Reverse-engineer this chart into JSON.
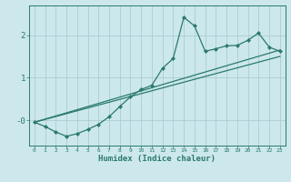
{
  "xlabel": "Humidex (Indice chaleur)",
  "bg_color": "#cce8ec",
  "grid_color": "#aacdd4",
  "line_color": "#2a7a6a",
  "x_ticks": [
    0,
    1,
    2,
    3,
    4,
    5,
    6,
    7,
    8,
    9,
    10,
    11,
    12,
    13,
    14,
    15,
    16,
    17,
    18,
    19,
    20,
    21,
    22,
    23
  ],
  "y_ticks": [
    0,
    1,
    2
  ],
  "y_tick_labels": [
    "-0",
    "1",
    "2"
  ],
  "ylim": [
    -0.6,
    2.7
  ],
  "xlim": [
    -0.5,
    23.5
  ],
  "series1_x": [
    0,
    1,
    2,
    3,
    4,
    5,
    6,
    7,
    8,
    9,
    10,
    11,
    12,
    13,
    14,
    15,
    16,
    17,
    18,
    19,
    20,
    21,
    22,
    23
  ],
  "series1_y": [
    -0.05,
    -0.15,
    -0.28,
    -0.38,
    -0.32,
    -0.22,
    -0.1,
    0.08,
    0.32,
    0.55,
    0.72,
    0.82,
    1.22,
    1.45,
    2.42,
    2.22,
    1.62,
    1.68,
    1.75,
    1.76,
    1.88,
    2.05,
    1.72,
    1.62
  ],
  "series2_x": [
    0,
    23
  ],
  "series2_y": [
    -0.05,
    1.65
  ],
  "series3_x": [
    0,
    23
  ],
  "series3_y": [
    -0.05,
    1.5
  ]
}
